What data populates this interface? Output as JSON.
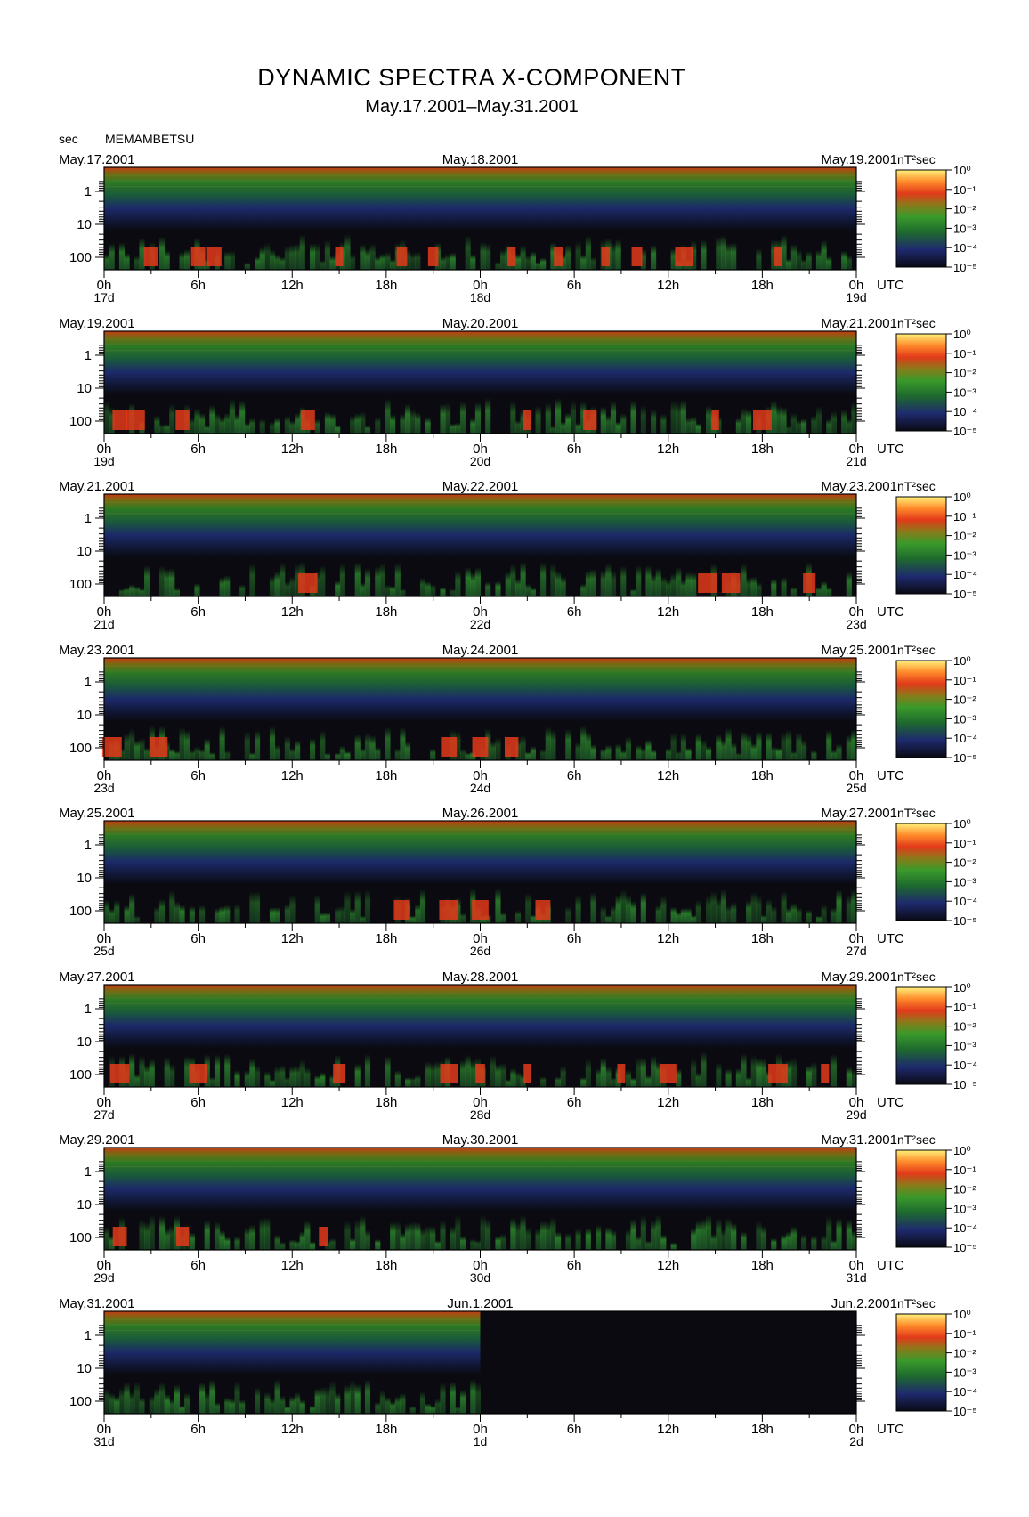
{
  "title": "DYNAMIC SPECTRA X-COMPONENT",
  "subtitle": "May.17.2001–May.31.2001",
  "station": "MEMAMBETSU",
  "y_unit_label": "sec",
  "colorbar_unit": "nT²sec",
  "colorbar_labels": [
    "10⁰",
    "10⁻¹",
    "10⁻²",
    "10⁻³",
    "10⁻⁴",
    "10⁻⁵"
  ],
  "colors": {
    "low": "#0a0a0a",
    "blue": "#1e2a6e",
    "green": "#2e8b2e",
    "red": "#e23a1a",
    "yellow": "#ffe866"
  },
  "chart_data": {
    "type": "heatmap",
    "title": "DYNAMIC SPECTRA X-COMPONENT",
    "subtitle": "May.17.2001–May.31.2001",
    "ylabel": "sec",
    "y_ticks": [
      "1",
      "10",
      "100"
    ],
    "y_scale": "log",
    "x_ticks": [
      "0h",
      "6h",
      "12h",
      "18h",
      "0h",
      "6h",
      "12h",
      "18h",
      "0h"
    ],
    "x_unit": "UTC",
    "colorbar": {
      "label": "nT²sec",
      "scale": "log",
      "range": [
        1e-05,
        1
      ]
    },
    "panels": [
      {
        "dates": [
          "May.17.2001",
          "May.18.2001",
          "May.19.2001"
        ],
        "days": [
          "17d",
          "18d",
          "19d"
        ],
        "red_bursts": [
          3,
          6,
          7,
          15,
          19,
          21,
          26,
          29,
          32,
          34,
          37,
          43
        ]
      },
      {
        "dates": [
          "May.19.2001",
          "May.20.2001",
          "May.21.2001"
        ],
        "days": [
          "19d",
          "20d",
          "21d"
        ],
        "red_bursts": [
          1,
          2,
          5,
          13,
          27,
          31,
          39,
          42
        ]
      },
      {
        "dates": [
          "May.21.2001",
          "May.22.2001",
          "May.23.2001"
        ],
        "days": [
          "21d",
          "22d",
          "23d"
        ],
        "red_bursts": [
          13,
          38.5,
          40,
          45
        ]
      },
      {
        "dates": [
          "May.23.2001",
          "May.24.2001",
          "May.25.2001"
        ],
        "days": [
          "23d",
          "24d",
          "25d"
        ],
        "red_bursts": [
          0.5,
          3.5,
          22,
          24,
          26
        ]
      },
      {
        "dates": [
          "May.25.2001",
          "May.26.2001",
          "May.27.2001"
        ],
        "days": [
          "25d",
          "26d",
          "27d"
        ],
        "red_bursts": [
          19,
          22,
          24,
          28
        ]
      },
      {
        "dates": [
          "May.27.2001",
          "May.28.2001",
          "May.29.2001"
        ],
        "days": [
          "27d",
          "28d",
          "29d"
        ],
        "red_bursts": [
          1,
          6,
          15,
          22,
          24,
          27,
          33,
          36,
          43,
          46
        ]
      },
      {
        "dates": [
          "May.29.2001",
          "May.30.2001",
          "May.31.2001"
        ],
        "days": [
          "29d",
          "30d",
          "31d"
        ],
        "red_bursts": [
          1,
          5,
          14
        ]
      },
      {
        "dates": [
          "May.31.2001",
          "Jun.1.2001",
          "Jun.2.2001"
        ],
        "days": [
          "31d",
          "1d",
          "2d"
        ],
        "red_bursts": []
      }
    ],
    "data_end_panel": 7,
    "data_end_hour": 24
  }
}
